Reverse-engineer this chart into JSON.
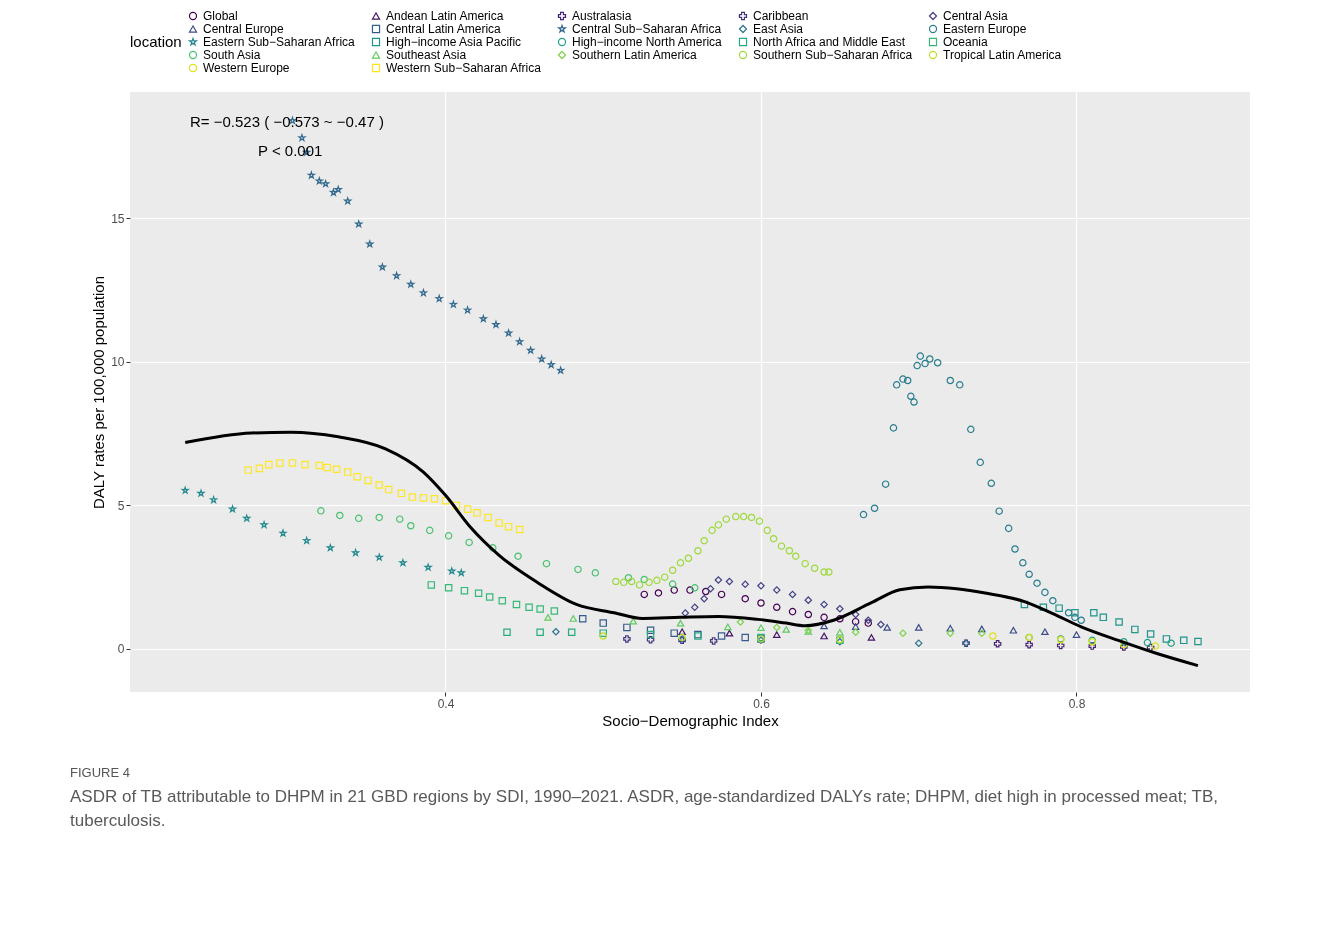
{
  "chart_data": {
    "type": "scatter",
    "xlabel": "Socio−Demographic Index",
    "ylabel": "DALY rates per 100,000 population",
    "legend_title": "location",
    "legend": "top",
    "grid": true,
    "xlim": [
      0.2,
      0.91
    ],
    "ylim": [
      -1.5,
      19.4
    ],
    "xticks": [
      0.4,
      0.6,
      0.8
    ],
    "yticks": [
      0,
      5,
      10,
      15
    ],
    "annotations": [
      "R= −0.523 ( −0.573 ~ −0.47 )",
      "P < 0.001",
      "FIGURE 4",
      "ASDR of TB attributable to DHPM in 21 GBD regions by SDI, 1990–2021. ASDR, age-standardized DALYs rate; DHPM, diet high in processed meat; TB, tuberculosis."
    ],
    "series": [
      {
        "name": "Global",
        "color": "#440154",
        "marker": "circle",
        "x": [
          0.526,
          0.535,
          0.545,
          0.555,
          0.565,
          0.575,
          0.59,
          0.6,
          0.61,
          0.62,
          0.63,
          0.64,
          0.65,
          0.66,
          0.668
        ],
        "values": [
          1.9,
          1.95,
          2.05,
          2.05,
          2.0,
          1.9,
          1.75,
          1.6,
          1.45,
          1.3,
          1.2,
          1.1,
          1.05,
          0.95,
          0.9
        ]
      },
      {
        "name": "Andean Latin America",
        "color": "#461468",
        "marker": "triangle",
        "x": [
          0.55,
          0.58,
          0.61,
          0.64,
          0.67
        ],
        "values": [
          0.6,
          0.55,
          0.5,
          0.45,
          0.4
        ]
      },
      {
        "name": "Australasia",
        "color": "#482475",
        "marker": "cross",
        "x": [
          0.73,
          0.75,
          0.77,
          0.79,
          0.81,
          0.83,
          0.847
        ],
        "values": [
          0.2,
          0.18,
          0.15,
          0.12,
          0.1,
          0.07,
          0.05
        ]
      },
      {
        "name": "Caribbean",
        "color": "#46337F",
        "marker": "cross",
        "x": [
          0.515,
          0.53,
          0.55,
          0.57
        ],
        "values": [
          0.35,
          0.32,
          0.3,
          0.28
        ]
      },
      {
        "name": "Central Asia",
        "color": "#424186",
        "marker": "diamond",
        "x": [
          0.552,
          0.558,
          0.564,
          0.568,
          0.573,
          0.58,
          0.59,
          0.6,
          0.61,
          0.62,
          0.63,
          0.64,
          0.65,
          0.66,
          0.668,
          0.676
        ],
        "values": [
          1.25,
          1.45,
          1.75,
          2.1,
          2.4,
          2.35,
          2.25,
          2.2,
          2.05,
          1.9,
          1.7,
          1.55,
          1.4,
          1.2,
          1.0,
          0.85
        ]
      },
      {
        "name": "Central Europe",
        "color": "#3D4E8A",
        "marker": "triangle",
        "x": [
          0.64,
          0.66,
          0.68,
          0.7,
          0.72,
          0.74,
          0.76,
          0.78,
          0.8
        ],
        "values": [
          0.8,
          0.78,
          0.75,
          0.75,
          0.72,
          0.7,
          0.65,
          0.6,
          0.5
        ]
      },
      {
        "name": "Central Latin America",
        "color": "#365C8D",
        "marker": "square",
        "x": [
          0.487,
          0.5,
          0.515,
          0.53,
          0.545,
          0.56,
          0.575,
          0.59,
          0.6
        ],
        "values": [
          1.05,
          0.9,
          0.75,
          0.65,
          0.55,
          0.5,
          0.45,
          0.4,
          0.35
        ]
      },
      {
        "name": "Central Sub−Saharan Africa",
        "color": "#31688E",
        "marker": "star",
        "x": [
          0.303,
          0.309,
          0.312,
          0.315,
          0.32,
          0.324,
          0.329,
          0.332,
          0.338,
          0.345,
          0.352,
          0.36,
          0.369,
          0.378,
          0.386,
          0.396,
          0.405,
          0.414,
          0.424,
          0.432,
          0.44,
          0.447,
          0.454,
          0.461,
          0.467,
          0.473
        ],
        "values": [
          18.4,
          17.8,
          17.3,
          16.5,
          16.3,
          16.2,
          15.9,
          16.0,
          15.6,
          14.8,
          14.1,
          13.3,
          13.0,
          12.7,
          12.4,
          12.2,
          12.0,
          11.8,
          11.5,
          11.3,
          11.0,
          10.7,
          10.4,
          10.1,
          9.9,
          9.7
        ]
      },
      {
        "name": "East Asia",
        "color": "#2D748E",
        "marker": "diamond",
        "x": [
          0.47,
          0.55,
          0.6,
          0.65,
          0.7,
          0.73
        ],
        "values": [
          0.6,
          0.35,
          0.3,
          0.25,
          0.2,
          0.2
        ]
      },
      {
        "name": "Eastern Europe",
        "color": "#287D8E",
        "marker": "circle",
        "x": [
          0.665,
          0.672,
          0.679,
          0.684,
          0.686,
          0.69,
          0.693,
          0.695,
          0.697,
          0.699,
          0.701,
          0.704,
          0.707,
          0.712,
          0.72,
          0.726,
          0.733,
          0.739,
          0.746,
          0.751,
          0.757,
          0.761,
          0.766,
          0.77,
          0.775,
          0.78,
          0.785,
          0.795,
          0.799,
          0.803
        ],
        "values": [
          4.68,
          4.9,
          5.74,
          7.7,
          9.2,
          9.4,
          9.35,
          8.8,
          8.6,
          9.87,
          10.2,
          9.94,
          10.1,
          9.97,
          9.35,
          9.2,
          7.65,
          6.5,
          5.77,
          4.8,
          4.2,
          3.48,
          3.0,
          2.6,
          2.29,
          1.97,
          1.68,
          1.26,
          1.1,
          1.0
        ]
      },
      {
        "name": "Eastern Sub−Saharan Africa",
        "color": "#23898E",
        "marker": "star",
        "x": [
          0.235,
          0.245,
          0.253,
          0.265,
          0.274,
          0.285,
          0.297,
          0.312,
          0.327,
          0.343,
          0.358,
          0.373,
          0.389,
          0.404,
          0.41
        ],
        "values": [
          5.52,
          5.42,
          5.19,
          4.87,
          4.55,
          4.32,
          4.03,
          3.77,
          3.52,
          3.35,
          3.19,
          3.0,
          2.84,
          2.71,
          2.65
        ]
      },
      {
        "name": "High−income Asia Pacific",
        "color": "#1F958B",
        "marker": "square",
        "x": [
          0.767,
          0.779,
          0.789,
          0.799,
          0.811,
          0.817,
          0.827,
          0.837,
          0.847,
          0.857,
          0.868,
          0.877
        ],
        "values": [
          1.55,
          1.45,
          1.42,
          1.26,
          1.26,
          1.1,
          0.94,
          0.68,
          0.52,
          0.35,
          0.3,
          0.26
        ]
      },
      {
        "name": "High−income North America",
        "color": "#20A086",
        "marker": "circle",
        "x": [
          0.77,
          0.79,
          0.81,
          0.83,
          0.845,
          0.86
        ],
        "values": [
          0.4,
          0.35,
          0.3,
          0.25,
          0.22,
          0.2
        ]
      },
      {
        "name": "North Africa and Middle East",
        "color": "#26AC82",
        "marker": "square",
        "x": [
          0.439,
          0.46,
          0.48,
          0.5,
          0.53,
          0.56,
          0.6,
          0.65
        ],
        "values": [
          0.58,
          0.58,
          0.58,
          0.55,
          0.5,
          0.45,
          0.4,
          0.3
        ]
      },
      {
        "name": "Oceania",
        "color": "#37B878",
        "marker": "square",
        "x": [
          0.391,
          0.402,
          0.412,
          0.421,
          0.428,
          0.436,
          0.445,
          0.453,
          0.46,
          0.469
        ],
        "values": [
          2.23,
          2.13,
          2.03,
          1.94,
          1.81,
          1.68,
          1.55,
          1.45,
          1.39,
          1.32
        ]
      },
      {
        "name": "South Asia",
        "color": "#48C16E",
        "marker": "circle",
        "x": [
          0.321,
          0.333,
          0.345,
          0.358,
          0.371,
          0.378,
          0.39,
          0.402,
          0.415,
          0.43,
          0.446,
          0.464,
          0.484,
          0.495,
          0.516,
          0.526,
          0.544,
          0.558
        ],
        "values": [
          4.81,
          4.65,
          4.55,
          4.58,
          4.52,
          4.29,
          4.13,
          3.94,
          3.71,
          3.52,
          3.23,
          2.97,
          2.77,
          2.65,
          2.48,
          2.42,
          2.26,
          2.13
        ]
      },
      {
        "name": "Southeast Asia",
        "color": "#62CA5F",
        "marker": "triangle",
        "x": [
          0.465,
          0.481,
          0.519,
          0.549,
          0.579,
          0.6,
          0.616,
          0.63,
          0.65
        ],
        "values": [
          1.1,
          1.06,
          0.97,
          0.9,
          0.77,
          0.74,
          0.68,
          0.61,
          0.58
        ]
      },
      {
        "name": "Southern Latin America",
        "color": "#7ED34F",
        "marker": "diamond",
        "x": [
          0.587,
          0.61,
          0.63,
          0.66,
          0.69,
          0.72,
          0.74
        ],
        "values": [
          0.94,
          0.75,
          0.65,
          0.58,
          0.55,
          0.55,
          0.55
        ]
      },
      {
        "name": "Southern Sub−Saharan Africa",
        "color": "#9DD93B",
        "marker": "circle",
        "x": [
          0.508,
          0.513,
          0.518,
          0.523,
          0.529,
          0.534,
          0.539,
          0.544,
          0.549,
          0.554,
          0.56,
          0.564,
          0.569,
          0.573,
          0.578,
          0.584,
          0.589,
          0.594,
          0.599,
          0.604,
          0.608,
          0.613,
          0.618,
          0.622,
          0.628,
          0.634,
          0.64,
          0.643
        ],
        "values": [
          2.35,
          2.32,
          2.35,
          2.23,
          2.32,
          2.39,
          2.5,
          2.74,
          3.0,
          3.16,
          3.42,
          3.77,
          4.13,
          4.32,
          4.52,
          4.61,
          4.61,
          4.58,
          4.45,
          4.13,
          3.84,
          3.58,
          3.42,
          3.23,
          2.97,
          2.81,
          2.68,
          2.68
        ]
      },
      {
        "name": "Tropical Latin America",
        "color": "#BDDF26",
        "marker": "circle",
        "x": [
          0.5,
          0.55,
          0.6,
          0.65
        ],
        "values": [
          0.45,
          0.4,
          0.35,
          0.32
        ]
      },
      {
        "name": "Western Europe",
        "color": "#DDE318",
        "marker": "circle",
        "x": [
          0.747,
          0.77,
          0.79,
          0.81,
          0.83,
          0.85
        ],
        "values": [
          0.45,
          0.4,
          0.32,
          0.25,
          0.15,
          0.1
        ]
      },
      {
        "name": "Western Sub−Saharan Africa",
        "color": "#FDE725",
        "marker": "square",
        "x": [
          0.275,
          0.282,
          0.288,
          0.295,
          0.303,
          0.311,
          0.32,
          0.325,
          0.331,
          0.338,
          0.344,
          0.351,
          0.358,
          0.364,
          0.372,
          0.379,
          0.386,
          0.393,
          0.4,
          0.407,
          0.414,
          0.42,
          0.427,
          0.434,
          0.44,
          0.447
        ],
        "values": [
          6.23,
          6.29,
          6.42,
          6.48,
          6.48,
          6.42,
          6.39,
          6.32,
          6.26,
          6.16,
          6.0,
          5.87,
          5.71,
          5.55,
          5.42,
          5.29,
          5.26,
          5.23,
          5.16,
          5.0,
          4.87,
          4.74,
          4.58,
          4.39,
          4.26,
          4.16
        ]
      },
      {
        "type": "line",
        "color": "#000000",
        "x": [
          0.235,
          0.277,
          0.302,
          0.332,
          0.362,
          0.386,
          0.4,
          0.416,
          0.434,
          0.459,
          0.483,
          0.507,
          0.525,
          0.549,
          0.573,
          0.598,
          0.616,
          0.628,
          0.646,
          0.67,
          0.688,
          0.706,
          0.724,
          0.743,
          0.767,
          0.785,
          0.803,
          0.827,
          0.851,
          0.877
        ],
        "values": [
          7.19,
          7.52,
          7.55,
          7.39,
          6.97,
          6.16,
          5.35,
          4.23,
          3.26,
          2.29,
          1.55,
          1.26,
          1.06,
          1.1,
          1.13,
          1.03,
          0.9,
          0.81,
          1.0,
          1.61,
          2.06,
          2.16,
          2.1,
          1.94,
          1.65,
          1.23,
          0.77,
          0.29,
          -0.16,
          -0.58
        ]
      }
    ]
  }
}
